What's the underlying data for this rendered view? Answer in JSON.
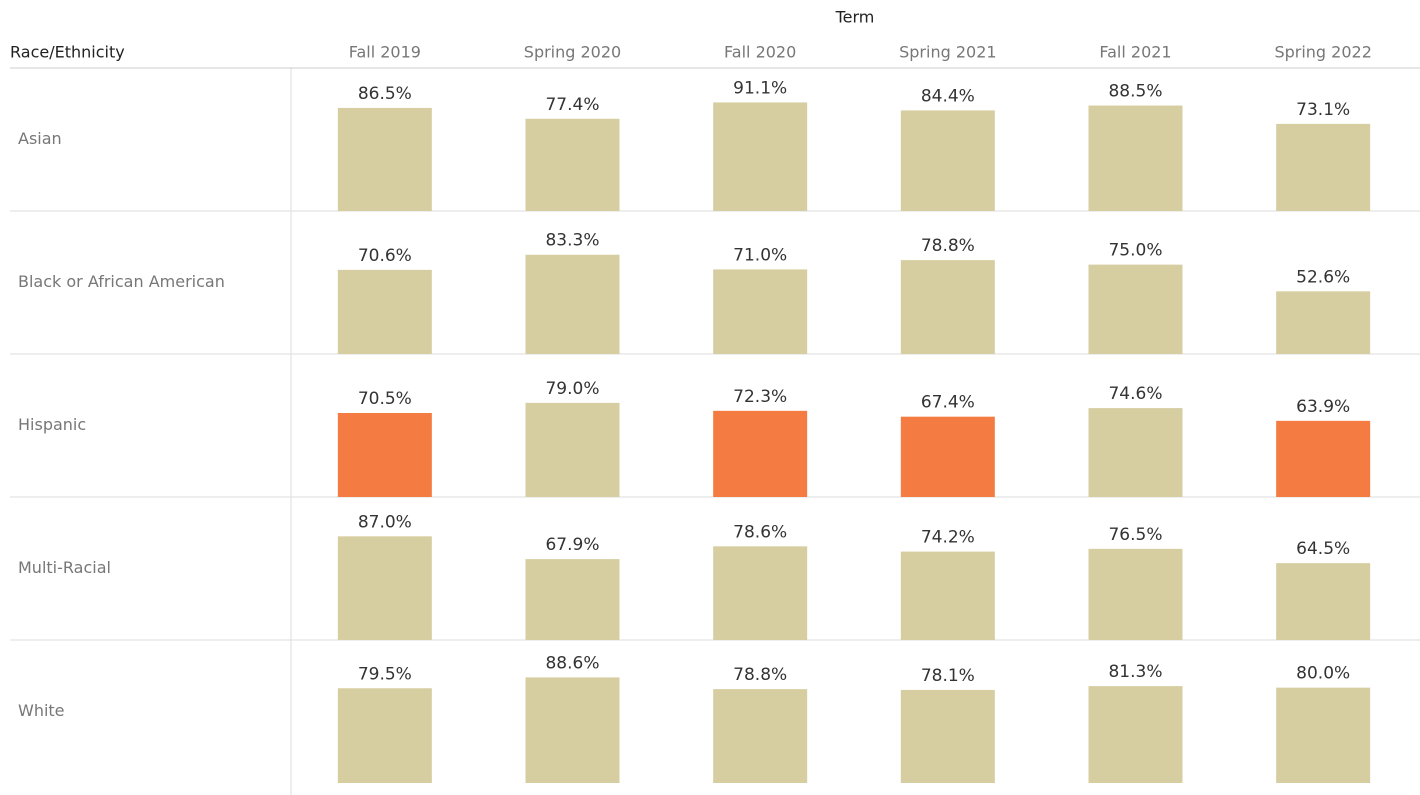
{
  "chart_data": {
    "type": "bar",
    "column_title": "Term",
    "row_title": "Race/Ethnicity",
    "categories": [
      "Fall 2019",
      "Spring 2020",
      "Fall 2020",
      "Spring 2021",
      "Fall 2021",
      "Spring 2022"
    ],
    "ylim": [
      0,
      120
    ],
    "series": [
      {
        "name": "Asian",
        "values": [
          86.5,
          77.4,
          91.1,
          84.4,
          88.5,
          73.1
        ],
        "value_labels": [
          "86.5%",
          "77.4%",
          "91.1%",
          "84.4%",
          "88.5%",
          "73.1%"
        ],
        "colors": [
          "#d6cea0",
          "#d6cea0",
          "#d6cea0",
          "#d6cea0",
          "#d6cea0",
          "#d6cea0"
        ]
      },
      {
        "name": "Black or African American",
        "values": [
          70.6,
          83.3,
          71.0,
          78.8,
          75.0,
          52.6
        ],
        "value_labels": [
          "70.6%",
          "83.3%",
          "71.0%",
          "78.8%",
          "75.0%",
          "52.6%"
        ],
        "colors": [
          "#d6cea0",
          "#d6cea0",
          "#d6cea0",
          "#d6cea0",
          "#d6cea0",
          "#d6cea0"
        ]
      },
      {
        "name": "Hispanic",
        "values": [
          70.5,
          79.0,
          72.3,
          67.4,
          74.6,
          63.9
        ],
        "value_labels": [
          "70.5%",
          "79.0%",
          "72.3%",
          "67.4%",
          "74.6%",
          "63.9%"
        ],
        "colors": [
          "#f47c43",
          "#d6cea0",
          "#f47c43",
          "#f47c43",
          "#d6cea0",
          "#f47c43"
        ]
      },
      {
        "name": "Multi-Racial",
        "values": [
          87.0,
          67.9,
          78.6,
          74.2,
          76.5,
          64.5
        ],
        "value_labels": [
          "87.0%",
          "67.9%",
          "78.6%",
          "74.2%",
          "76.5%",
          "64.5%"
        ],
        "colors": [
          "#d6cea0",
          "#d6cea0",
          "#d6cea0",
          "#d6cea0",
          "#d6cea0",
          "#d6cea0"
        ]
      },
      {
        "name": "White",
        "values": [
          79.5,
          88.6,
          78.8,
          78.1,
          81.3,
          80.0
        ],
        "value_labels": [
          "79.5%",
          "88.6%",
          "78.8%",
          "78.1%",
          "81.3%",
          "80.0%"
        ],
        "colors": [
          "#d6cea0",
          "#d6cea0",
          "#d6cea0",
          "#d6cea0",
          "#d6cea0",
          "#d6cea0"
        ]
      }
    ]
  }
}
